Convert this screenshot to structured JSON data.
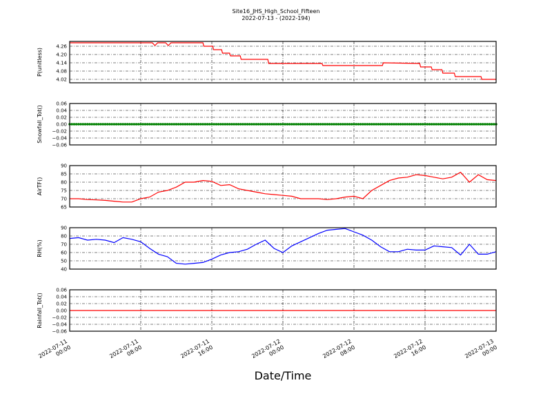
{
  "chart_data": {
    "type": "line",
    "title": "Site16_JHS_High_School_Fifteen",
    "subtitle": "2022-07-13 - (2022-194)",
    "xlabel": "Date/Time",
    "xlim": [
      "2022-07-11 00:00",
      "2022-07-13 00:00"
    ],
    "xticks": [
      [
        "2022-07-11",
        "00:00"
      ],
      [
        "2022-07-11",
        "08:00"
      ],
      [
        "2022-07-11",
        "16:00"
      ],
      [
        "2022-07-12",
        "00:00"
      ],
      [
        "2022-07-12",
        "08:00"
      ],
      [
        "2022-07-12",
        "16:00"
      ],
      [
        "2022-07-13",
        "00:00"
      ]
    ],
    "x_unit_note_hours_from": "2022-07-11 00:00",
    "grid": true,
    "panels": [
      {
        "ylabel": "P(unitless)",
        "ylim": [
          3.995,
          4.295
        ],
        "color": "#ff0000",
        "style": "line",
        "yticks": [
          "4.02",
          "4.08",
          "4.14",
          "4.20",
          "4.26"
        ],
        "ytick_values": [
          4.02,
          4.08,
          4.14,
          4.2,
          4.26
        ],
        "points": [
          [
            0,
            4.285
          ],
          [
            9.3,
            4.285
          ],
          [
            9.6,
            4.265
          ],
          [
            9.9,
            4.285
          ],
          [
            10.8,
            4.285
          ],
          [
            11.1,
            4.265
          ],
          [
            11.4,
            4.285
          ],
          [
            15,
            4.285
          ],
          [
            15.1,
            4.26
          ],
          [
            16.1,
            4.26
          ],
          [
            16.2,
            4.235
          ],
          [
            17.1,
            4.235
          ],
          [
            17.2,
            4.21
          ],
          [
            18,
            4.21
          ],
          [
            18.1,
            4.19
          ],
          [
            19.2,
            4.19
          ],
          [
            19.3,
            4.165
          ],
          [
            22.3,
            4.165
          ],
          [
            22.4,
            4.135
          ],
          [
            28.4,
            4.135
          ],
          [
            28.5,
            4.12
          ],
          [
            35.2,
            4.12
          ],
          [
            35.3,
            4.14
          ],
          [
            39.4,
            4.135
          ],
          [
            39.5,
            4.11
          ],
          [
            40.7,
            4.11
          ],
          [
            40.8,
            4.09
          ],
          [
            41.9,
            4.09
          ],
          [
            42,
            4.065
          ],
          [
            43.3,
            4.065
          ],
          [
            43.4,
            4.04
          ],
          [
            46.3,
            4.04
          ],
          [
            46.4,
            4.02
          ],
          [
            48,
            4.02
          ]
        ]
      },
      {
        "ylabel": "Snowfall_Tot()",
        "ylim": [
          -0.06,
          0.06
        ],
        "color": "#008000",
        "style": "dots",
        "yticks": [
          "−0.06",
          "−0.04",
          "−0.02",
          "0.00",
          "0.02",
          "0.04",
          "0.06"
        ],
        "ytick_values": [
          -0.06,
          -0.04,
          -0.02,
          0,
          0.02,
          0.04,
          0.06
        ],
        "constant": 0
      },
      {
        "ylabel": "AirTF()",
        "ylim": [
          65,
          90
        ],
        "color": "#ff0000",
        "style": "line",
        "yticks": [
          "65",
          "70",
          "75",
          "80",
          "85",
          "90"
        ],
        "ytick_values": [
          65,
          70,
          75,
          80,
          85,
          90
        ],
        "hourly": [
          70,
          70,
          69.5,
          69.3,
          69,
          68.5,
          68,
          68,
          70,
          71,
          74,
          75,
          77,
          80,
          80,
          81,
          80.5,
          78,
          78.5,
          76,
          75,
          74,
          73,
          72.5,
          72,
          71.5,
          70,
          70,
          70,
          69.5,
          70,
          71,
          71.5,
          70,
          75,
          78,
          81,
          82.5,
          83,
          84.5,
          84,
          83,
          82,
          83,
          86,
          80,
          84.5,
          81.5,
          81
        ]
      },
      {
        "ylabel": "RH(%)",
        "ylim": [
          40,
          90
        ],
        "color": "#0000ff",
        "style": "line",
        "yticks": [
          "40",
          "50",
          "60",
          "70",
          "80",
          "90"
        ],
        "ytick_values": [
          40,
          50,
          60,
          70,
          80,
          90
        ],
        "hourly": [
          77,
          78,
          75,
          76,
          75,
          72,
          78,
          76,
          73,
          65,
          58,
          55,
          47,
          46,
          47,
          48,
          52,
          57,
          60,
          61,
          64,
          70,
          75,
          65,
          60,
          68,
          73,
          78,
          83,
          87,
          88,
          89,
          85,
          81,
          75,
          67,
          61,
          61,
          64,
          63,
          63,
          68,
          67,
          66,
          57,
          70,
          58,
          58,
          61
        ]
      },
      {
        "ylabel": "Rainfall_Tot()",
        "ylim": [
          -0.06,
          0.06
        ],
        "color": "#ff0000",
        "style": "line",
        "yticks": [
          "−0.06",
          "−0.04",
          "−0.02",
          "0.00",
          "0.02",
          "0.04",
          "0.06"
        ],
        "ytick_values": [
          -0.06,
          -0.04,
          -0.02,
          0,
          0.02,
          0.04,
          0.06
        ],
        "constant": 0
      }
    ]
  }
}
